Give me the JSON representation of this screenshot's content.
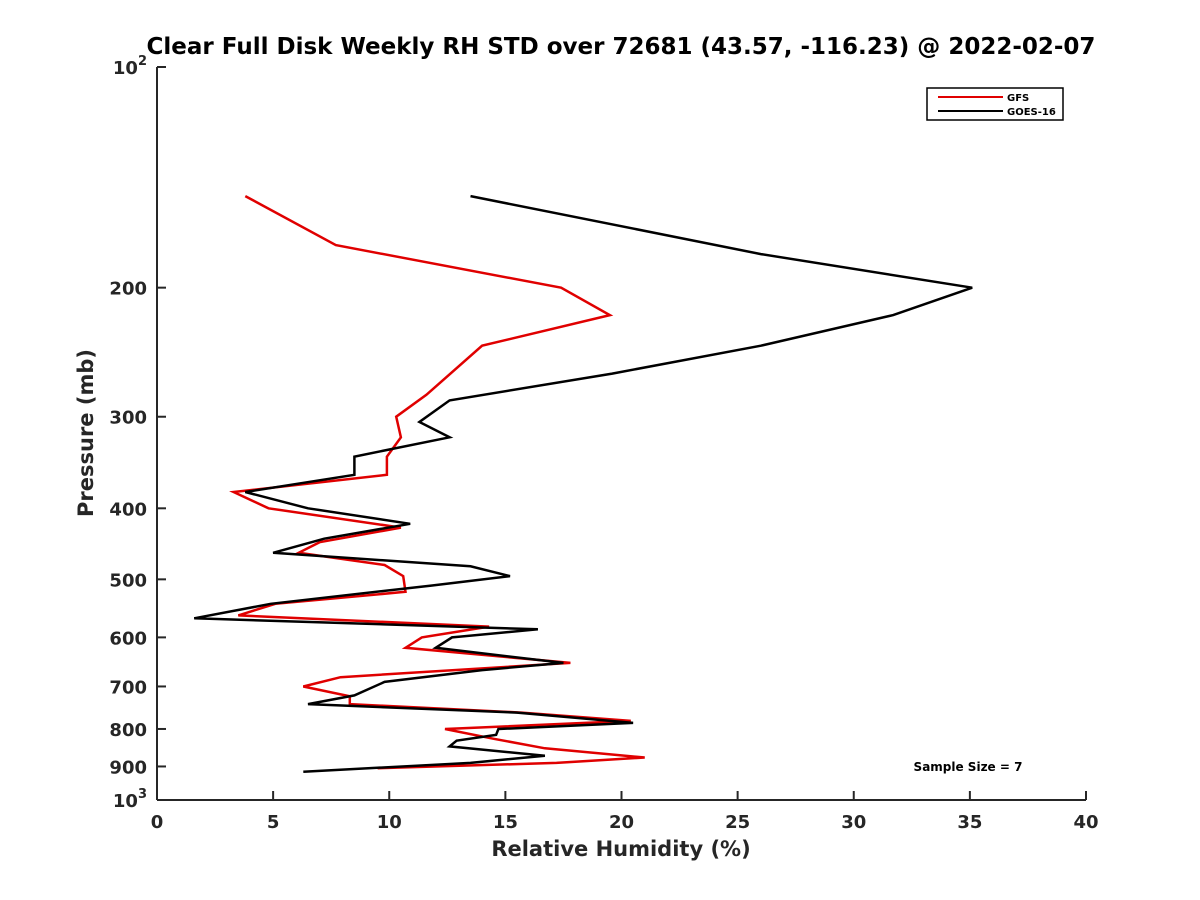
{
  "chart_data": {
    "type": "line",
    "title": "Clear Full Disk Weekly RH STD over 72681 (43.57, -116.23) @ 2022-02-07",
    "xlabel": "Relative Humidity (%)",
    "ylabel": "Pressure (mb)",
    "xlim": [
      0,
      40
    ],
    "ylim": [
      100,
      1000
    ],
    "y_scale": "log",
    "y_direction": "reversed",
    "grid": false,
    "legend_position": "top-right",
    "x_ticks": [
      "0",
      "5",
      "10",
      "15",
      "20",
      "25",
      "30",
      "35",
      "40"
    ],
    "x_tick_values": [
      0,
      5,
      10,
      15,
      20,
      25,
      30,
      35,
      40
    ],
    "y_ticks": [
      {
        "value": 100,
        "base": "10",
        "exp": "2"
      },
      {
        "value": 200,
        "label": "200"
      },
      {
        "value": 300,
        "label": "300"
      },
      {
        "value": 400,
        "label": "400"
      },
      {
        "value": 500,
        "label": "500"
      },
      {
        "value": 600,
        "label": "600"
      },
      {
        "value": 700,
        "label": "700"
      },
      {
        "value": 800,
        "label": "800"
      },
      {
        "value": 900,
        "label": "900"
      },
      {
        "value": 1000,
        "base": "10",
        "exp": "3"
      }
    ],
    "annotation": "Sample Size = 7",
    "series": [
      {
        "name": "GFS",
        "color": "#e00000",
        "points": [
          [
            3.8,
            150
          ],
          [
            7.7,
            175
          ],
          [
            17.4,
            200
          ],
          [
            19.5,
            218
          ],
          [
            14.0,
            240
          ],
          [
            11.6,
            280
          ],
          [
            10.3,
            300
          ],
          [
            10.5,
            320
          ],
          [
            9.9,
            340
          ],
          [
            9.9,
            360
          ],
          [
            3.3,
            380
          ],
          [
            4.8,
            400
          ],
          [
            10.5,
            425
          ],
          [
            7.0,
            445
          ],
          [
            6.1,
            460
          ],
          [
            9.8,
            478
          ],
          [
            10.6,
            495
          ],
          [
            10.7,
            520
          ],
          [
            5.1,
            540
          ],
          [
            3.5,
            560
          ],
          [
            14.3,
            580
          ],
          [
            11.4,
            600
          ],
          [
            10.7,
            620
          ],
          [
            17.8,
            650
          ],
          [
            7.9,
            680
          ],
          [
            6.3,
            700
          ],
          [
            8.3,
            722
          ],
          [
            8.3,
            740
          ],
          [
            15.7,
            760
          ],
          [
            20.4,
            780
          ],
          [
            12.4,
            800
          ],
          [
            14.5,
            825
          ],
          [
            16.7,
            850
          ],
          [
            21.0,
            875
          ],
          [
            17.2,
            890
          ],
          [
            9.5,
            905
          ]
        ]
      },
      {
        "name": "GOES-16",
        "color": "#000000",
        "points": [
          [
            13.5,
            150
          ],
          [
            26.0,
            180
          ],
          [
            35.1,
            200
          ],
          [
            31.7,
            218
          ],
          [
            26.0,
            240
          ],
          [
            19.6,
            262
          ],
          [
            12.6,
            285
          ],
          [
            11.3,
            305
          ],
          [
            12.6,
            320
          ],
          [
            8.5,
            340
          ],
          [
            8.5,
            360
          ],
          [
            3.8,
            380
          ],
          [
            6.5,
            400
          ],
          [
            10.9,
            420
          ],
          [
            7.2,
            440
          ],
          [
            5.0,
            460
          ],
          [
            13.5,
            480
          ],
          [
            15.2,
            495
          ],
          [
            11.8,
            510
          ],
          [
            4.9,
            540
          ],
          [
            1.6,
            565
          ],
          [
            16.4,
            585
          ],
          [
            12.7,
            600
          ],
          [
            12.0,
            620
          ],
          [
            17.5,
            650
          ],
          [
            14.0,
            665
          ],
          [
            9.8,
            690
          ],
          [
            8.5,
            720
          ],
          [
            6.5,
            740
          ],
          [
            15.5,
            760
          ],
          [
            20.5,
            785
          ],
          [
            14.7,
            800
          ],
          [
            14.6,
            815
          ],
          [
            12.9,
            830
          ],
          [
            12.6,
            845
          ],
          [
            16.7,
            870
          ],
          [
            13.5,
            890
          ],
          [
            6.3,
            915
          ]
        ]
      }
    ]
  }
}
